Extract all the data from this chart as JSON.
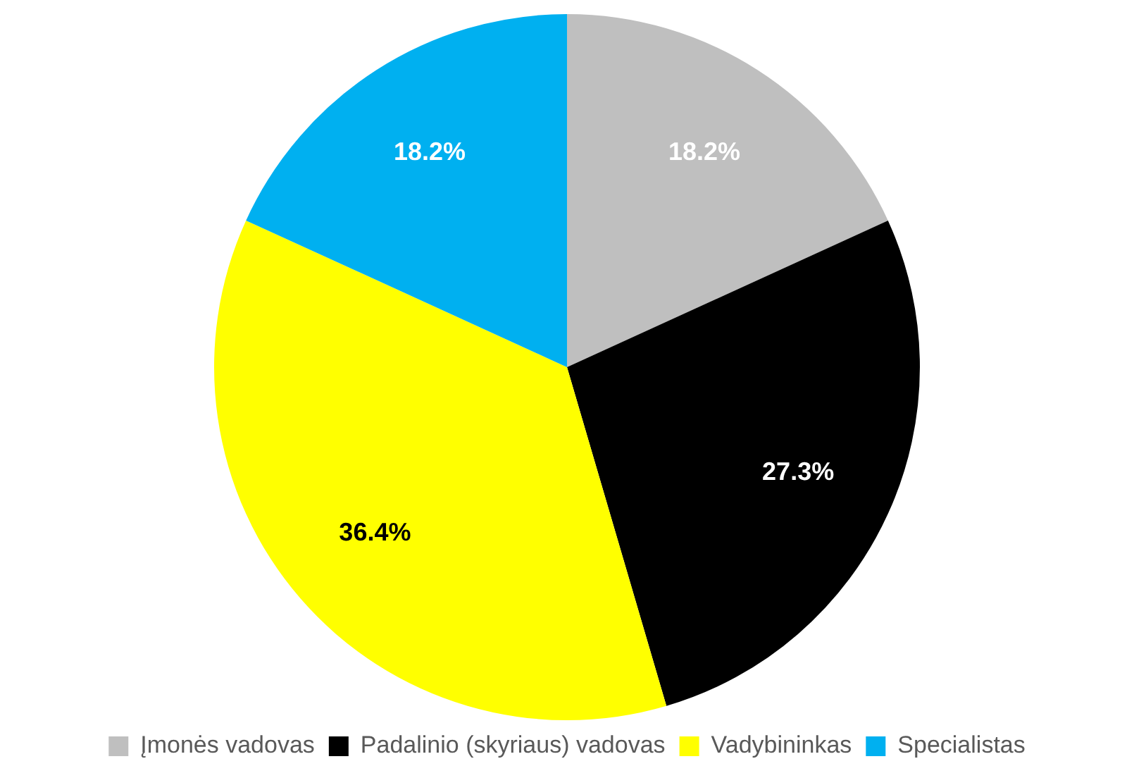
{
  "chart_data": {
    "type": "pie",
    "categories": [
      "Įmonės vadovas",
      "Padalinio (skyriaus) vadovas",
      "Vadybininkas",
      "Specialistas"
    ],
    "values": [
      18.2,
      27.3,
      36.4,
      18.2
    ],
    "colors": [
      "#bfbfbf",
      "#000000",
      "#ffff00",
      "#00b0f0"
    ],
    "value_labels": [
      "18.2%",
      "27.3%",
      "36.4%",
      "18.2%"
    ],
    "legend": "bottom"
  }
}
